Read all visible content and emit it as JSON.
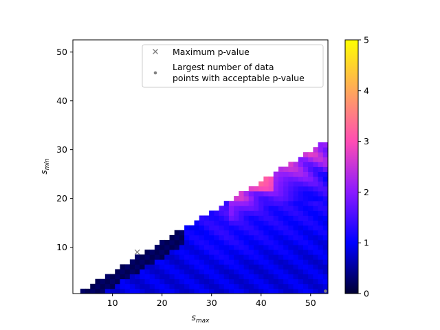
{
  "chart_data": {
    "type": "heatmap",
    "title": "",
    "xlabel": "s",
    "xlabel_sub": "max",
    "ylabel": "s",
    "ylabel_sub": "min",
    "xlim": [
      2,
      53.5
    ],
    "ylim": [
      0.5,
      52.5
    ],
    "x_ticks": [
      10,
      20,
      30,
      40,
      50
    ],
    "y_ticks": [
      10,
      20,
      30,
      40,
      50
    ],
    "colorbar": {
      "min": 0,
      "max": 5,
      "ticks": [
        0,
        1,
        2,
        3,
        4,
        5
      ],
      "colormap": "gnuplot2",
      "stops": [
        "#000033",
        "#0000ff",
        "#8a1aff",
        "#ff4db3",
        "#ffa85a",
        "#ffff00"
      ]
    },
    "legend": {
      "position": "upper right",
      "entries": [
        {
          "marker": "x",
          "label": "Maximum p-value"
        },
        {
          "marker": "point",
          "label": "Largest number of data points with acceptable p-value",
          "label_lines": [
            "Largest number of data",
            "points with acceptable p-value"
          ]
        }
      ]
    },
    "marker_color": "#808080",
    "markers": [
      {
        "type": "x",
        "label": "Maximum p-value",
        "x": 15,
        "y": 9
      },
      {
        "type": "point",
        "label": "Largest number of data points with acceptable p-value",
        "x": 53,
        "y": 1
      }
    ],
    "grid": false,
    "heatmap_rule": "cells exist for integer s_min, s_max with 1 <= s_min <= about 0.62*(s_max - 2); colour encodes p-value (0-5)",
    "value_regions": [
      {
        "region": "diagonal edge, s_max 8-24",
        "p_value": 0.2
      },
      {
        "region": "bulk low s_min",
        "p_value": 1.0
      },
      {
        "region": "middle, s_max 30-53",
        "p_value": 1.8
      },
      {
        "region": "upper edge, s_max 35-53",
        "p_value": 2.8
      },
      {
        "region": "peak near s_max 40, s_min 25",
        "p_value": 3.7
      }
    ]
  }
}
